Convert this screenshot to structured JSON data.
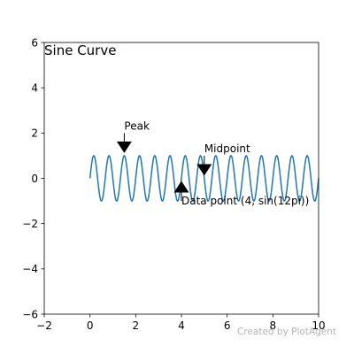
{
  "chart_data": {
    "type": "line",
    "title": "Sine Curve",
    "xlabel": "",
    "ylabel": "",
    "xlim": [
      -2,
      10
    ],
    "ylim": [
      -6,
      6
    ],
    "xticks": [
      -2,
      0,
      2,
      4,
      6,
      8,
      10
    ],
    "yticks": [
      -6,
      -4,
      -2,
      0,
      2,
      4,
      6
    ],
    "grid": false,
    "series": [
      {
        "function": "sin(3*pi*x)",
        "x_range": [
          0,
          10
        ],
        "color": "#1f77b4"
      }
    ],
    "annotations": [
      {
        "text": "Peak",
        "point": [
          1.5,
          1
        ],
        "text_pos": [
          1.5,
          2
        ],
        "arrow": "down"
      },
      {
        "text": "Midpoint",
        "point": [
          5,
          0
        ],
        "text_pos": [
          5,
          1
        ],
        "arrow": "down"
      },
      {
        "text": "Data point (4, sin(12pi))",
        "point": [
          4,
          0
        ],
        "text_pos": [
          4,
          -1
        ],
        "arrow": "up"
      }
    ],
    "watermark": "Created by PlotAgent"
  }
}
